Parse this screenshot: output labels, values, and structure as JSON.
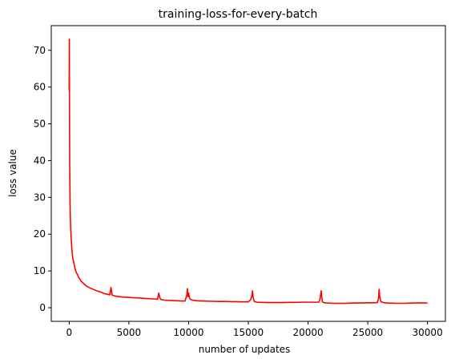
{
  "chart_data": {
    "type": "line",
    "title": "training-loss-for-every-batch",
    "xlabel": "number of updates",
    "ylabel": "loss value",
    "xlim": [
      -1500,
      31500
    ],
    "ylim": [
      -3.7,
      76.7
    ],
    "xticks": [
      0,
      5000,
      10000,
      15000,
      20000,
      25000,
      30000
    ],
    "xtick_labels": [
      "0",
      "5000",
      "10000",
      "15000",
      "20000",
      "25000",
      "30000"
    ],
    "yticks": [
      0,
      10,
      20,
      30,
      40,
      50,
      60,
      70
    ],
    "ytick_labels": [
      "0",
      "10",
      "20",
      "30",
      "40",
      "50",
      "60",
      "70"
    ],
    "grid": false,
    "legend": "none",
    "series": [
      {
        "color": "#ff0000",
        "x": [
          0,
          10,
          20,
          40,
          60,
          80,
          100,
          150,
          200,
          250,
          300,
          400,
          500,
          600,
          700,
          800,
          900,
          1000,
          1200,
          1400,
          1600,
          1800,
          2000,
          2300,
          2600,
          3000,
          3400,
          3500,
          3600,
          3700,
          4000,
          4500,
          5000,
          5500,
          6000,
          6500,
          7000,
          7400,
          7500,
          7600,
          7700,
          7900,
          8200,
          8600,
          9000,
          9400,
          9700,
          9850,
          9900,
          9950,
          10000,
          10100,
          10200,
          10400,
          10700,
          11000,
          11500,
          12000,
          12500,
          13000,
          13500,
          14000,
          14500,
          15000,
          15200,
          15300,
          15350,
          15400,
          15500,
          15700,
          16000,
          16500,
          17000,
          17500,
          18000,
          18500,
          19000,
          19500,
          20000,
          20500,
          20900,
          21000,
          21100,
          21150,
          21200,
          21300,
          21500,
          21800,
          22200,
          22600,
          23000,
          23500,
          24000,
          24500,
          25000,
          25500,
          25800,
          25900,
          25950,
          26000,
          26100,
          26300,
          26600,
          27000,
          27500,
          28000,
          28500,
          29000,
          29500,
          30000
        ],
        "y": [
          59,
          73,
          60,
          40,
          33,
          27,
          24,
          20,
          17,
          15,
          13.5,
          12,
          10.5,
          9.5,
          9,
          8.2,
          7.8,
          7.2,
          6.6,
          6,
          5.6,
          5.3,
          5,
          4.6,
          4.3,
          3.8,
          3.5,
          5.5,
          3.4,
          3.3,
          3.1,
          2.9,
          2.8,
          2.7,
          2.6,
          2.5,
          2.4,
          2.3,
          4,
          2.6,
          2.2,
          2.1,
          2.0,
          1.95,
          1.9,
          1.85,
          1.8,
          3.5,
          5.2,
          3,
          4,
          2.4,
          2.2,
          2.0,
          1.9,
          1.85,
          1.8,
          1.75,
          1.7,
          1.7,
          1.65,
          1.65,
          1.6,
          1.6,
          2.2,
          3.2,
          4.6,
          2.8,
          1.7,
          1.5,
          1.45,
          1.4,
          1.4,
          1.4,
          1.4,
          1.45,
          1.45,
          1.5,
          1.5,
          1.5,
          1.5,
          2.3,
          4.6,
          3,
          1.6,
          1.4,
          1.3,
          1.25,
          1.2,
          1.2,
          1.2,
          1.25,
          1.3,
          1.3,
          1.35,
          1.35,
          1.4,
          2.5,
          5,
          3,
          1.7,
          1.4,
          1.3,
          1.25,
          1.2,
          1.2,
          1.25,
          1.3,
          1.3,
          1.3
        ]
      }
    ]
  }
}
